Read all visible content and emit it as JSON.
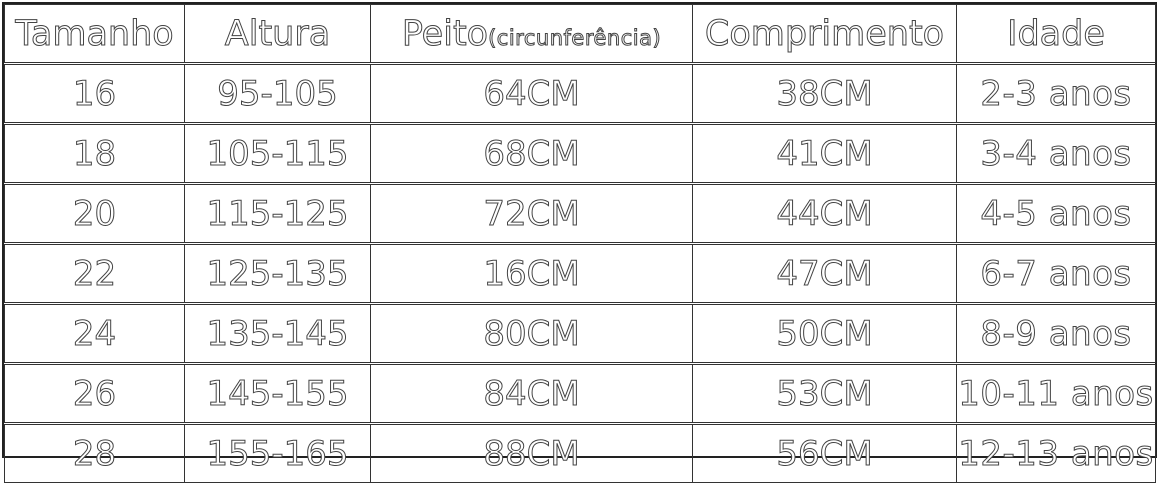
{
  "headers": {
    "tamanho": "Tamanho",
    "altura": "Altura",
    "peito": "Peito",
    "peito_sub": "(circunferência)",
    "comprimento": "Comprimento",
    "idade": "Idade"
  },
  "rows": [
    {
      "tamanho": "16",
      "altura": "95-105",
      "peito": "64CM",
      "comprimento": "38CM",
      "idade": "2-3 anos"
    },
    {
      "tamanho": "18",
      "altura": "105-115",
      "peito": "68CM",
      "comprimento": "41CM",
      "idade": "3-4 anos"
    },
    {
      "tamanho": "20",
      "altura": "115-125",
      "peito": "72CM",
      "comprimento": "44CM",
      "idade": "4-5 anos"
    },
    {
      "tamanho": "22",
      "altura": "125-135",
      "peito": "16CM",
      "comprimento": "47CM",
      "idade": "6-7 anos"
    },
    {
      "tamanho": "24",
      "altura": "135-145",
      "peito": "80CM",
      "comprimento": "50CM",
      "idade": "8-9 anos"
    },
    {
      "tamanho": "26",
      "altura": "145-155",
      "peito": "84CM",
      "comprimento": "53CM",
      "idade": "10-11 anos"
    },
    {
      "tamanho": "28",
      "altura": "155-165",
      "peito": "88CM",
      "comprimento": "56CM",
      "idade": "12-13 anos"
    }
  ]
}
